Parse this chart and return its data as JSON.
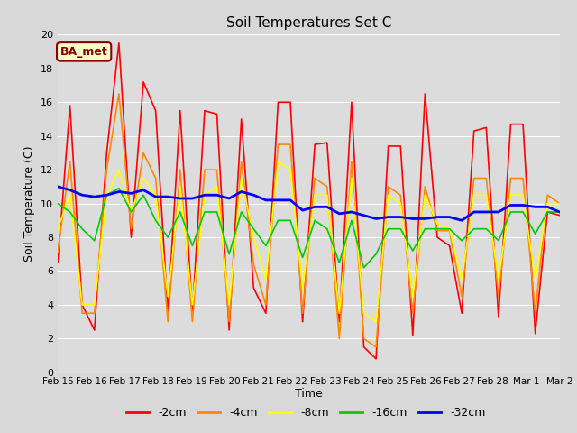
{
  "title": "Soil Temperatures Set C",
  "xlabel": "Time",
  "ylabel": "Soil Temperature (C)",
  "annotation": "BA_met",
  "annotation_fc": "#ffffcc",
  "annotation_ec": "#8B0000",
  "annotation_tc": "#8B0000",
  "ylim": [
    0,
    20
  ],
  "yticks": [
    0,
    2,
    4,
    6,
    8,
    10,
    12,
    14,
    16,
    18,
    20
  ],
  "xtick_labels": [
    "Feb 15",
    "Feb 16",
    "Feb 17",
    "Feb 18",
    "Feb 19",
    "Feb 20",
    "Feb 21",
    "Feb 22",
    "Feb 23",
    "Feb 24",
    "Feb 25",
    "Feb 26",
    "Feb 27",
    "Feb 28",
    "Mar 1",
    "Mar 2"
  ],
  "legend_labels": [
    "-2cm",
    "-4cm",
    "-8cm",
    "-16cm",
    "-32cm"
  ],
  "line_colors": [
    "#ff0000",
    "#ff8800",
    "#ffff00",
    "#00cc00",
    "#0000ff"
  ],
  "line_widths": [
    1.2,
    1.2,
    1.2,
    1.2,
    2.0
  ],
  "fig_bg": "#d8d8d8",
  "plot_bg": "#dcdcdc",
  "grid_color": "#ffffff",
  "cm2": [
    6.5,
    15.8,
    4.0,
    2.5,
    13.0,
    19.5,
    8.0,
    17.2,
    15.5,
    3.5,
    15.5,
    3.5,
    15.5,
    15.3,
    2.5,
    15.0,
    5.0,
    3.5,
    16.0,
    16.0,
    3.0,
    13.5,
    13.6,
    3.0,
    16.0,
    1.5,
    0.8,
    13.4,
    13.4,
    2.2,
    16.5,
    8.0,
    7.5,
    3.5,
    14.3,
    14.5,
    3.3,
    14.7,
    14.7,
    2.3,
    9.5,
    9.3
  ],
  "cm4": [
    7.1,
    12.5,
    3.5,
    3.5,
    12.0,
    16.5,
    8.5,
    13.0,
    11.5,
    3.0,
    12.0,
    3.0,
    12.0,
    12.0,
    3.0,
    12.5,
    6.4,
    4.0,
    13.5,
    13.5,
    3.5,
    11.5,
    11.0,
    2.0,
    12.5,
    2.0,
    1.5,
    11.0,
    10.5,
    3.5,
    11.0,
    8.4,
    8.4,
    4.5,
    11.5,
    11.5,
    4.5,
    11.5,
    11.5,
    3.5,
    10.5,
    10.0
  ],
  "cm8": [
    8.5,
    10.5,
    4.0,
    4.0,
    10.5,
    12.0,
    9.5,
    11.5,
    10.5,
    4.5,
    11.0,
    4.0,
    10.5,
    11.0,
    4.0,
    11.5,
    8.0,
    5.5,
    12.5,
    12.0,
    5.0,
    10.5,
    10.5,
    3.5,
    11.5,
    3.5,
    3.0,
    10.5,
    10.0,
    4.5,
    10.5,
    8.8,
    8.5,
    5.5,
    10.5,
    10.5,
    5.5,
    10.5,
    10.5,
    5.5,
    10.0,
    10.0
  ],
  "cm16": [
    10.0,
    9.5,
    8.5,
    7.8,
    10.5,
    10.9,
    9.5,
    10.5,
    9.0,
    8.0,
    9.5,
    7.5,
    9.5,
    9.5,
    7.0,
    9.5,
    8.5,
    7.5,
    9.0,
    9.0,
    6.8,
    9.0,
    8.5,
    6.5,
    9.0,
    6.2,
    7.0,
    8.5,
    8.5,
    7.2,
    8.5,
    8.5,
    8.5,
    7.8,
    8.5,
    8.5,
    7.8,
    9.5,
    9.5,
    8.2,
    9.5,
    9.5
  ],
  "cm32": [
    11.0,
    10.8,
    10.5,
    10.4,
    10.5,
    10.7,
    10.6,
    10.8,
    10.4,
    10.4,
    10.3,
    10.3,
    10.5,
    10.5,
    10.3,
    10.7,
    10.5,
    10.2,
    10.2,
    10.2,
    9.6,
    9.8,
    9.8,
    9.4,
    9.5,
    9.3,
    9.1,
    9.2,
    9.2,
    9.1,
    9.1,
    9.2,
    9.2,
    9.0,
    9.5,
    9.5,
    9.5,
    9.9,
    9.9,
    9.8,
    9.8,
    9.5
  ]
}
